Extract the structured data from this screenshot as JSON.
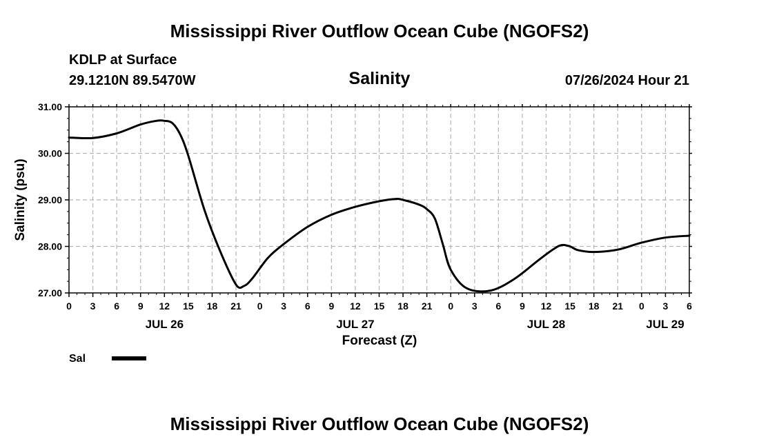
{
  "header": {
    "title": "Mississippi River Outflow Ocean Cube (NGOFS2)",
    "station": "KDLP at Surface",
    "coords": "29.1210N  89.5470W",
    "timestamp": "07/26/2024 Hour 21",
    "footer_title": "Mississippi River Outflow Ocean Cube (NGOFS2)"
  },
  "chart_data": {
    "type": "line",
    "title": "Salinity",
    "xlabel": "Forecast (Z)",
    "ylabel": "Salinity (psu)",
    "xlim": [
      0,
      78
    ],
    "ylim": [
      27.0,
      31.0
    ],
    "yticks": [
      "27.00",
      "28.00",
      "29.00",
      "30.00",
      "31.00"
    ],
    "ytick_values": [
      27,
      28,
      29,
      30,
      31
    ],
    "xtick_labels": [
      "0",
      "3",
      "6",
      "9",
      "12",
      "15",
      "18",
      "21",
      "0",
      "3",
      "6",
      "9",
      "12",
      "15",
      "18",
      "21",
      "0",
      "3",
      "6",
      "9",
      "12",
      "15",
      "18",
      "21",
      "0",
      "3",
      "6"
    ],
    "day_labels": [
      {
        "label": "JUL 26",
        "hour": 12
      },
      {
        "label": "JUL 27",
        "hour": 36
      },
      {
        "label": "JUL 28",
        "hour": 60
      },
      {
        "label": "JUL 29",
        "hour": 78
      }
    ],
    "grid": true,
    "legend": {
      "position": "bottom-left",
      "label": "Sal"
    },
    "series": [
      {
        "name": "Sal",
        "color": "#000000",
        "x": [
          0,
          3,
          6,
          9,
          11,
          12,
          13,
          14,
          15,
          17,
          19,
          21,
          22,
          23,
          25,
          27,
          30,
          33,
          36,
          39,
          41,
          42,
          44,
          45,
          46,
          47,
          48,
          50,
          53,
          56,
          59,
          61,
          62,
          63,
          64,
          66,
          69,
          72,
          75,
          78
        ],
        "values": [
          30.34,
          30.33,
          30.43,
          30.62,
          30.7,
          30.7,
          30.65,
          30.4,
          29.95,
          28.8,
          27.9,
          27.18,
          27.15,
          27.3,
          27.75,
          28.05,
          28.42,
          28.68,
          28.85,
          28.97,
          29.02,
          29.0,
          28.9,
          28.8,
          28.6,
          28.05,
          27.5,
          27.1,
          27.05,
          27.3,
          27.7,
          27.95,
          28.03,
          28.0,
          27.92,
          27.88,
          27.93,
          28.08,
          28.19,
          28.23
        ]
      }
    ]
  }
}
